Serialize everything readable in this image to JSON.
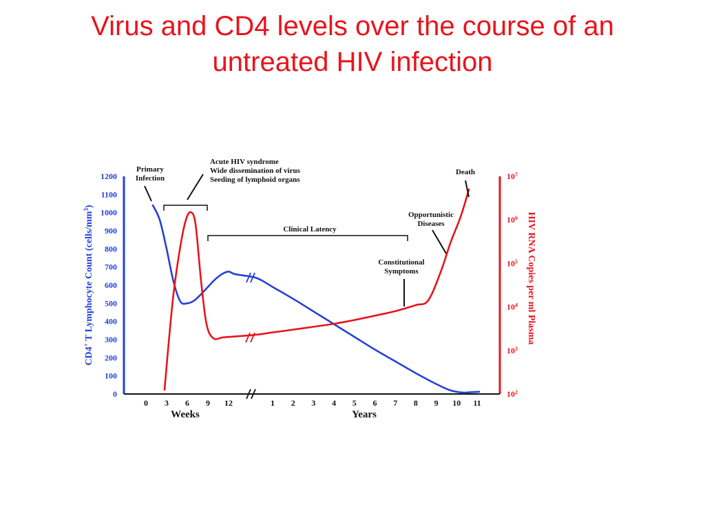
{
  "slide": {
    "title_line1": "Virus and CD4 levels over the course of an",
    "title_line2": "untreated HIV infection"
  },
  "colors": {
    "title": "#e8141c",
    "cd4": "#2440d8",
    "rna": "#e8141c",
    "axis": "#111111"
  },
  "chart_data": {
    "type": "line",
    "title": "",
    "left_axis": {
      "label_prefix": "CD4",
      "label_sup": "+",
      "label_mid": " T Lymphocyte Count (cells/mm",
      "label_sup2": "3",
      "label_suffix": ")",
      "range": [
        0,
        1200
      ],
      "ticks": [
        "0",
        "100",
        "200",
        "300",
        "400",
        "500",
        "600",
        "700",
        "800",
        "900",
        "1000",
        "1100",
        "1200"
      ]
    },
    "right_axis": {
      "label": "HIV RNA Copies per ml Plasma",
      "scale": "log",
      "range": [
        100,
        10000000
      ],
      "ticks": [
        {
          "base": "10",
          "exp": "2"
        },
        {
          "base": "10",
          "exp": "3"
        },
        {
          "base": "10",
          "exp": "4"
        },
        {
          "base": "10",
          "exp": "5"
        },
        {
          "base": "10",
          "exp": "6"
        },
        {
          "base": "10",
          "exp": "7"
        }
      ]
    },
    "x_axis": {
      "segments": [
        {
          "unit": "Weeks",
          "ticks": [
            "0",
            "3",
            "6",
            "9",
            "12"
          ]
        },
        {
          "unit": "Years",
          "ticks": [
            "1",
            "2",
            "3",
            "4",
            "5",
            "6",
            "7",
            "8",
            "9",
            "10",
            "11"
          ]
        }
      ],
      "break_between_segments": true
    },
    "series": [
      {
        "name": "CD4",
        "axis": "left",
        "points": [
          {
            "unit": "week",
            "x": 1,
            "y": 1040
          },
          {
            "unit": "week",
            "x": 2,
            "y": 960
          },
          {
            "unit": "week",
            "x": 3,
            "y": 800
          },
          {
            "unit": "week",
            "x": 4,
            "y": 620
          },
          {
            "unit": "week",
            "x": 5,
            "y": 510
          },
          {
            "unit": "week",
            "x": 6,
            "y": 500
          },
          {
            "unit": "week",
            "x": 7,
            "y": 515
          },
          {
            "unit": "week",
            "x": 8,
            "y": 550
          },
          {
            "unit": "week",
            "x": 9,
            "y": 590
          },
          {
            "unit": "week",
            "x": 10,
            "y": 630
          },
          {
            "unit": "week",
            "x": 11,
            "y": 660
          },
          {
            "unit": "week",
            "x": 12,
            "y": 675
          },
          {
            "unit": "week",
            "x": 13,
            "y": 660
          },
          {
            "unit": "year",
            "x": 0.2,
            "y": 640
          },
          {
            "unit": "year",
            "x": 1,
            "y": 590
          },
          {
            "unit": "year",
            "x": 2,
            "y": 525
          },
          {
            "unit": "year",
            "x": 3,
            "y": 455
          },
          {
            "unit": "year",
            "x": 4,
            "y": 385
          },
          {
            "unit": "year",
            "x": 5,
            "y": 315
          },
          {
            "unit": "year",
            "x": 6,
            "y": 245
          },
          {
            "unit": "year",
            "x": 7,
            "y": 180
          },
          {
            "unit": "year",
            "x": 8,
            "y": 115
          },
          {
            "unit": "year",
            "x": 9,
            "y": 55
          },
          {
            "unit": "year",
            "x": 9.7,
            "y": 20
          },
          {
            "unit": "year",
            "x": 10.3,
            "y": 8
          },
          {
            "unit": "year",
            "x": 10.7,
            "y": 10
          },
          {
            "unit": "year",
            "x": 11.1,
            "y": 12
          }
        ]
      },
      {
        "name": "HIV RNA",
        "axis": "right",
        "points": [
          {
            "unit": "week",
            "x": 2.7,
            "y": 125
          },
          {
            "unit": "week",
            "x": 3.2,
            "y": 1000
          },
          {
            "unit": "week",
            "x": 4.0,
            "y": 20000
          },
          {
            "unit": "week",
            "x": 5.0,
            "y": 250000
          },
          {
            "unit": "week",
            "x": 5.8,
            "y": 1000000
          },
          {
            "unit": "week",
            "x": 6.5,
            "y": 1500000
          },
          {
            "unit": "week",
            "x": 7.2,
            "y": 800000
          },
          {
            "unit": "week",
            "x": 8.0,
            "y": 40000
          },
          {
            "unit": "week",
            "x": 8.8,
            "y": 4000
          },
          {
            "unit": "week",
            "x": 9.8,
            "y": 1900
          },
          {
            "unit": "week",
            "x": 11.2,
            "y": 2000
          },
          {
            "unit": "week",
            "x": 13.0,
            "y": 2100
          },
          {
            "unit": "year",
            "x": 0.2,
            "y": 2300
          },
          {
            "unit": "year",
            "x": 1,
            "y": 2600
          },
          {
            "unit": "year",
            "x": 2,
            "y": 3000
          },
          {
            "unit": "year",
            "x": 3,
            "y": 3500
          },
          {
            "unit": "year",
            "x": 4,
            "y": 4100
          },
          {
            "unit": "year",
            "x": 5,
            "y": 5000
          },
          {
            "unit": "year",
            "x": 6,
            "y": 6300
          },
          {
            "unit": "year",
            "x": 7,
            "y": 8000
          },
          {
            "unit": "year",
            "x": 8,
            "y": 11000
          },
          {
            "unit": "year",
            "x": 8.6,
            "y": 14000
          },
          {
            "unit": "year",
            "x": 9.2,
            "y": 60000
          },
          {
            "unit": "year",
            "x": 9.7,
            "y": 300000
          },
          {
            "unit": "year",
            "x": 10.2,
            "y": 1200000
          },
          {
            "unit": "year",
            "x": 10.6,
            "y": 5000000
          }
        ]
      }
    ],
    "annotations": [
      {
        "id": "primary",
        "lines": [
          "Primary",
          "Infection"
        ]
      },
      {
        "id": "acute",
        "lines": [
          "Acute HIV syndrome",
          "Wide dissemination of virus",
          "Seeding of lymphoid organs"
        ]
      },
      {
        "id": "latency",
        "lines": [
          "Clinical Latency"
        ]
      },
      {
        "id": "death",
        "lines": [
          "Death"
        ]
      },
      {
        "id": "opportunistic",
        "lines": [
          "Opportunistic",
          "Diseases"
        ]
      },
      {
        "id": "constitutional",
        "lines": [
          "Constitutional",
          "Symptoms"
        ]
      }
    ]
  }
}
